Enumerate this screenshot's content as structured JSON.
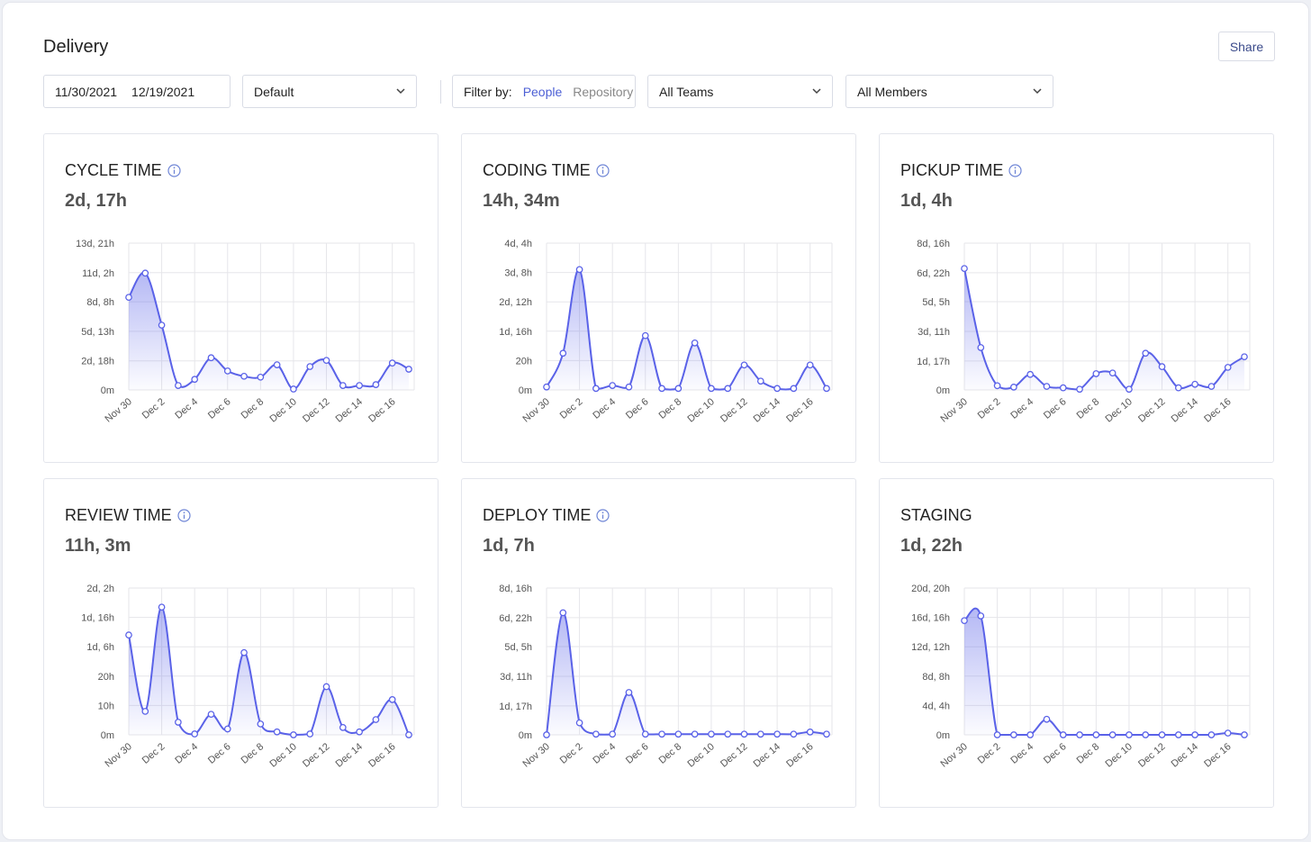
{
  "header": {
    "title": "Delivery",
    "share": "Share"
  },
  "filters": {
    "start_date": "11/30/2021",
    "end_date": "12/19/2021",
    "preset": "Default",
    "filter_label": "Filter by:",
    "filter_options": [
      "People",
      "Repository"
    ],
    "teams": "All Teams",
    "members": "All Members"
  },
  "chart_data": [
    {
      "type": "line",
      "title": "CYCLE TIME",
      "summary": "2d, 17h",
      "info_icon": true,
      "color": "#5a62e8",
      "categories": [
        "Nov 30",
        null,
        "Dec 2",
        null,
        "Dec 4",
        null,
        "Dec 6",
        null,
        "Dec 8",
        null,
        "Dec 10",
        null,
        "Dec 12",
        null,
        "Dec 14",
        null,
        "Dec 16",
        null
      ],
      "values": [
        210,
        265,
        147,
        10,
        24,
        73,
        43,
        31,
        29,
        57,
        2,
        53,
        67,
        10,
        10,
        12,
        61,
        47
      ],
      "ylim": [
        0,
        333
      ],
      "yticks": [
        {
          "value": 0,
          "label": "0m"
        },
        {
          "value": 66,
          "label": "2d, 18h"
        },
        {
          "value": 133,
          "label": "5d, 13h"
        },
        {
          "value": 200,
          "label": "8d, 8h"
        },
        {
          "value": 266,
          "label": "11d, 2h"
        },
        {
          "value": 333,
          "label": "13d, 21h"
        }
      ],
      "grid": true
    },
    {
      "type": "line",
      "title": "CODING TIME",
      "summary": "14h, 34m",
      "info_icon": true,
      "color": "#5a62e8",
      "categories": [
        "Nov 30",
        null,
        "Dec 2",
        null,
        "Dec 4",
        null,
        "Dec 6",
        null,
        "Dec 8",
        null,
        "Dec 10",
        null,
        "Dec 12",
        null,
        "Dec 14",
        null,
        "Dec 16",
        null
      ],
      "values": [
        2,
        25,
        82,
        1,
        3,
        2,
        37,
        1,
        1,
        32,
        1,
        1,
        17,
        6,
        1,
        1,
        17,
        1
      ],
      "ylim": [
        0,
        100
      ],
      "yticks": [
        {
          "value": 0,
          "label": "0m"
        },
        {
          "value": 20,
          "label": "20h"
        },
        {
          "value": 40,
          "label": "1d, 16h"
        },
        {
          "value": 60,
          "label": "2d, 12h"
        },
        {
          "value": 80,
          "label": "3d, 8h"
        },
        {
          "value": 100,
          "label": "4d, 4h"
        }
      ],
      "grid": true
    },
    {
      "type": "line",
      "title": "PICKUP TIME",
      "summary": "1d, 4h",
      "info_icon": true,
      "color": "#5a62e8",
      "categories": [
        "Nov 30",
        null,
        "Dec 2",
        null,
        "Dec 4",
        null,
        "Dec 6",
        null,
        "Dec 8",
        null,
        "Dec 10",
        null,
        "Dec 12",
        null,
        "Dec 14",
        null,
        "Dec 16",
        null
      ],
      "values": [
        172,
        60,
        6,
        4,
        22,
        5,
        3,
        1,
        23,
        24,
        1,
        52,
        33,
        3,
        8,
        5,
        32,
        47
      ],
      "ylim": [
        0,
        208
      ],
      "yticks": [
        {
          "value": 0,
          "label": "0m"
        },
        {
          "value": 41,
          "label": "1d, 17h"
        },
        {
          "value": 83,
          "label": "3d, 11h"
        },
        {
          "value": 125,
          "label": "5d, 5h"
        },
        {
          "value": 166,
          "label": "6d, 22h"
        },
        {
          "value": 208,
          "label": "8d, 16h"
        }
      ],
      "grid": true
    },
    {
      "type": "line",
      "title": "REVIEW TIME",
      "summary": "11h, 3m",
      "info_icon": true,
      "color": "#5a62e8",
      "categories": [
        "Nov 30",
        null,
        "Dec 2",
        null,
        "Dec 4",
        null,
        "Dec 6",
        null,
        "Dec 8",
        null,
        "Dec 10",
        null,
        "Dec 12",
        null,
        "Dec 14",
        null,
        "Dec 16",
        null
      ],
      "values": [
        34,
        8,
        43.5,
        4.3,
        0.3,
        7,
        2,
        28,
        3.7,
        1,
        0,
        0.3,
        16.4,
        2.5,
        1,
        5.2,
        12,
        0
      ],
      "ylim": [
        0,
        50
      ],
      "yticks": [
        {
          "value": 0,
          "label": "0m"
        },
        {
          "value": 10,
          "label": "10h"
        },
        {
          "value": 20,
          "label": "20h"
        },
        {
          "value": 30,
          "label": "1d, 6h"
        },
        {
          "value": 40,
          "label": "1d, 16h"
        },
        {
          "value": 50,
          "label": "2d, 2h"
        }
      ],
      "grid": true
    },
    {
      "type": "line",
      "title": "DEPLOY TIME",
      "summary": "1d, 7h",
      "info_icon": true,
      "color": "#5a62e8",
      "categories": [
        "Nov 30",
        null,
        "Dec 2",
        null,
        "Dec 4",
        null,
        "Dec 6",
        null,
        "Dec 8",
        null,
        "Dec 10",
        null,
        "Dec 12",
        null,
        "Dec 14",
        null,
        "Dec 16",
        null
      ],
      "values": [
        0,
        173,
        17,
        1,
        1,
        60,
        1,
        1,
        1,
        1,
        1,
        1,
        1,
        1,
        1,
        1,
        4,
        1
      ],
      "ylim": [
        0,
        208
      ],
      "yticks": [
        {
          "value": 0,
          "label": "0m"
        },
        {
          "value": 41,
          "label": "1d, 17h"
        },
        {
          "value": 83,
          "label": "3d, 11h"
        },
        {
          "value": 125,
          "label": "5d, 5h"
        },
        {
          "value": 166,
          "label": "6d, 22h"
        },
        {
          "value": 208,
          "label": "8d, 16h"
        }
      ],
      "grid": true
    },
    {
      "type": "line",
      "title": "STAGING",
      "summary": "1d, 22h",
      "info_icon": false,
      "color": "#5a62e8",
      "categories": [
        "Nov 30",
        null,
        "Dec 2",
        null,
        "Dec 4",
        null,
        "Dec 6",
        null,
        "Dec 8",
        null,
        "Dec 10",
        null,
        "Dec 12",
        null,
        "Dec 14",
        null,
        "Dec 16",
        null
      ],
      "values": [
        389,
        405,
        0,
        0,
        0,
        53,
        0,
        0,
        0,
        0,
        0,
        0,
        0,
        0,
        0,
        0,
        6,
        0
      ],
      "ylim": [
        0,
        500
      ],
      "yticks": [
        {
          "value": 0,
          "label": "0m"
        },
        {
          "value": 100,
          "label": "4d, 4h"
        },
        {
          "value": 200,
          "label": "8d, 8h"
        },
        {
          "value": 300,
          "label": "12d, 12h"
        },
        {
          "value": 400,
          "label": "16d, 16h"
        },
        {
          "value": 500,
          "label": "20d, 20h"
        }
      ],
      "grid": true
    }
  ]
}
